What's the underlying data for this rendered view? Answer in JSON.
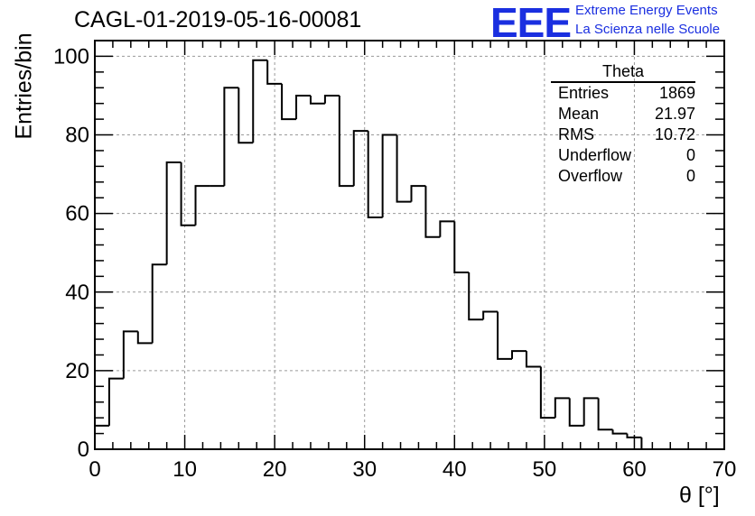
{
  "header": {
    "title": "CAGL-01-2019-05-16-00081",
    "logo_text": "EEE",
    "logo_line1": "Extreme Energy Events",
    "logo_line2": "La Scienza nelle Scuole"
  },
  "stats_box": {
    "title": "Theta",
    "rows": [
      {
        "label": "Entries",
        "value": "1869"
      },
      {
        "label": "Mean",
        "value": "21.97"
      },
      {
        "label": "RMS",
        "value": "10.72"
      },
      {
        "label": "Underflow",
        "value": "0"
      },
      {
        "label": "Overflow",
        "value": "0"
      }
    ]
  },
  "chart_data": {
    "type": "bar",
    "xlabel": "θ [°]",
    "ylabel": "Entries/bin",
    "xlim": [
      0,
      70
    ],
    "ylim": [
      0,
      104
    ],
    "bin_width": 1.6,
    "bin_edges_start": 0,
    "values": [
      6,
      18,
      30,
      27,
      47,
      73,
      57,
      67,
      67,
      92,
      78,
      99,
      93,
      84,
      90,
      88,
      90,
      67,
      81,
      59,
      80,
      63,
      67,
      54,
      58,
      45,
      33,
      35,
      23,
      25,
      21,
      8,
      13,
      6,
      13,
      5,
      4,
      3,
      0,
      0,
      0,
      0,
      0,
      0
    ],
    "x_ticks": [
      0,
      10,
      20,
      30,
      40,
      50,
      60,
      70
    ],
    "y_ticks": [
      0,
      20,
      40,
      60,
      80,
      100
    ],
    "grid": true,
    "colors": {
      "line": "#000000",
      "grid": "#9a9a9a",
      "logo": "#1a2fe0"
    }
  }
}
